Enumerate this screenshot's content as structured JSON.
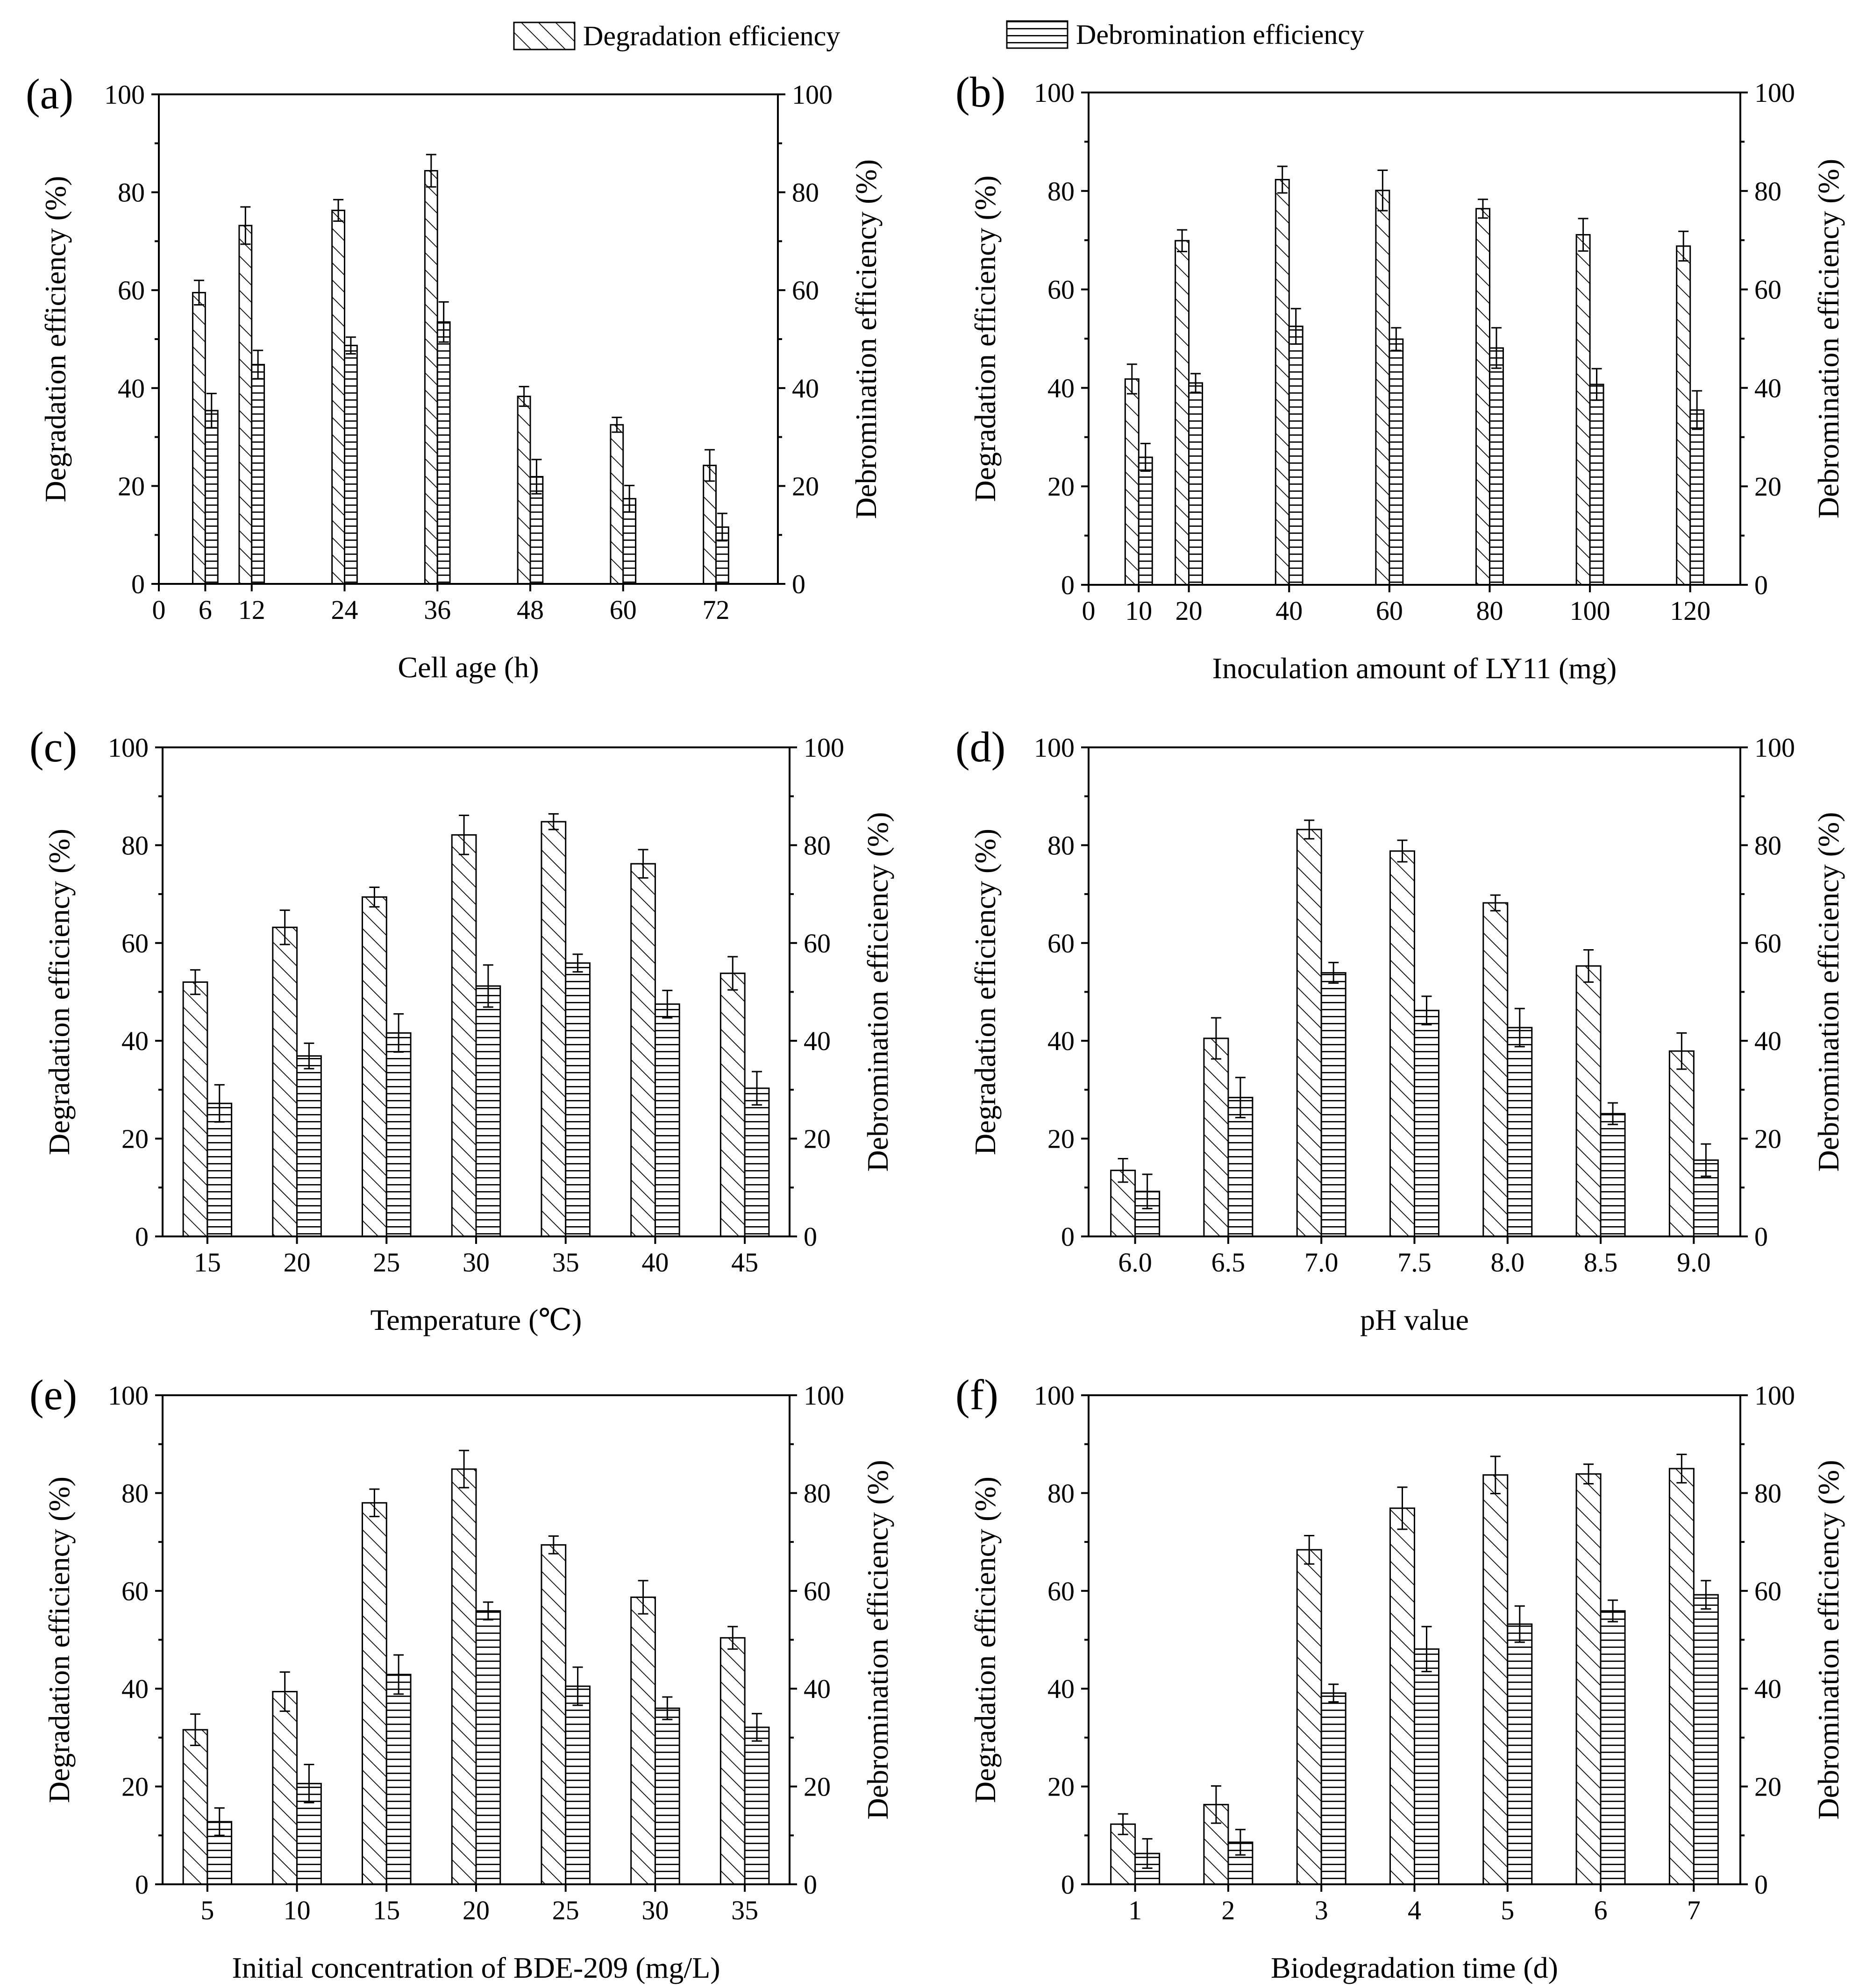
{
  "legend": {
    "degradation_label": "Degradation efficiency",
    "debromination_label": "Debromination efficiency"
  },
  "colors": {
    "bar_fill": "#ffffff",
    "stroke": "#000000"
  },
  "chart_data": [
    {
      "type": "bar",
      "panel_label": "(a)",
      "xlabel": "Cell age (h)",
      "ylabel_left": "Degradation efficiency (%)",
      "ylabel_right": "Debromination efficiency (%)",
      "ylim": [
        0,
        100
      ],
      "yticks": [
        0,
        20,
        40,
        60,
        80,
        100
      ],
      "x_axis_kind": "numeric",
      "xlim": [
        0,
        80
      ],
      "xticks": [
        0,
        6,
        12,
        24,
        36,
        48,
        60,
        72
      ],
      "x": [
        6,
        12,
        24,
        36,
        48,
        60,
        72
      ],
      "series": [
        {
          "name": "Degradation efficiency",
          "values": [
            59.5,
            73.2,
            76.3,
            84.4,
            38.3,
            32.5,
            24.2
          ],
          "errors": [
            2.5,
            3.8,
            2.2,
            3.3,
            2.0,
            1.5,
            3.2
          ]
        },
        {
          "name": "Debromination efficiency",
          "values": [
            35.4,
            44.8,
            48.7,
            53.5,
            21.9,
            17.4,
            11.6
          ],
          "errors": [
            3.5,
            2.9,
            1.7,
            4.1,
            3.5,
            2.7,
            2.8
          ]
        }
      ]
    },
    {
      "type": "bar",
      "panel_label": "(b)",
      "xlabel": "Inoculation amount of LY11 (mg)",
      "ylabel_left": "Degradation efficiency (%)",
      "ylabel_right": "Debromination efficiency (%)",
      "ylim": [
        0,
        100
      ],
      "yticks": [
        0,
        20,
        40,
        60,
        80,
        100
      ],
      "x_axis_kind": "numeric",
      "xlim": [
        0,
        130
      ],
      "xticks": [
        0,
        10,
        20,
        40,
        60,
        80,
        100,
        120
      ],
      "x": [
        10,
        20,
        40,
        60,
        80,
        100,
        120
      ],
      "series": [
        {
          "name": "Degradation efficiency",
          "values": [
            41.8,
            69.9,
            82.3,
            80.1,
            76.4,
            71.1,
            68.8
          ],
          "errors": [
            3.0,
            2.2,
            2.7,
            4.1,
            1.9,
            3.3,
            3.0
          ]
        },
        {
          "name": "Debromination efficiency",
          "values": [
            25.9,
            41.0,
            52.5,
            49.9,
            48.1,
            40.7,
            35.5
          ],
          "errors": [
            2.8,
            1.9,
            3.6,
            2.3,
            4.1,
            3.2,
            3.9
          ]
        }
      ]
    },
    {
      "type": "bar",
      "panel_label": "(c)",
      "xlabel": "Temperature (℃)",
      "ylabel_left": "Degradation efficiency (%)",
      "ylabel_right": "Debromination efficiency (%)",
      "ylim": [
        0,
        100
      ],
      "yticks": [
        0,
        20,
        40,
        60,
        80,
        100
      ],
      "x_axis_kind": "category",
      "categories": [
        "15",
        "20",
        "25",
        "30",
        "35",
        "40",
        "45"
      ],
      "series": [
        {
          "name": "Degradation efficiency",
          "values": [
            52.0,
            63.2,
            69.4,
            82.1,
            84.8,
            76.2,
            53.8
          ],
          "errors": [
            2.5,
            3.5,
            2.0,
            4.0,
            1.6,
            2.9,
            3.4
          ]
        },
        {
          "name": "Debromination efficiency",
          "values": [
            27.2,
            36.9,
            41.6,
            51.2,
            55.9,
            47.5,
            30.3
          ],
          "errors": [
            3.8,
            2.6,
            3.9,
            4.3,
            1.8,
            2.8,
            3.4
          ]
        }
      ]
    },
    {
      "type": "bar",
      "panel_label": "(d)",
      "xlabel": "pH value",
      "ylabel_left": "Degradation efficiency (%)",
      "ylabel_right": "Debromination efficiency (%)",
      "ylim": [
        0,
        100
      ],
      "yticks": [
        0,
        20,
        40,
        60,
        80,
        100
      ],
      "x_axis_kind": "category",
      "categories": [
        "6.0",
        "6.5",
        "7.0",
        "7.5",
        "8.0",
        "8.5",
        "9.0"
      ],
      "series": [
        {
          "name": "Degradation efficiency",
          "values": [
            13.5,
            40.5,
            83.2,
            78.8,
            68.2,
            55.3,
            37.9
          ],
          "errors": [
            2.4,
            4.2,
            1.9,
            2.2,
            1.6,
            3.3,
            3.7
          ]
        },
        {
          "name": "Debromination efficiency",
          "values": [
            9.2,
            28.4,
            53.9,
            46.2,
            42.7,
            25.1,
            15.6
          ],
          "errors": [
            3.5,
            4.1,
            2.1,
            2.9,
            3.9,
            2.2,
            3.3
          ]
        }
      ]
    },
    {
      "type": "bar",
      "panel_label": "(e)",
      "xlabel": "Initial concentration of BDE-209 (mg/L)",
      "ylabel_left": "Degradation efficiency (%)",
      "ylabel_right": "Debromination efficiency (%)",
      "ylim": [
        0,
        100
      ],
      "yticks": [
        0,
        20,
        40,
        60,
        80,
        100
      ],
      "x_axis_kind": "category",
      "categories": [
        "5",
        "10",
        "15",
        "20",
        "25",
        "30",
        "35"
      ],
      "series": [
        {
          "name": "Degradation efficiency",
          "values": [
            31.6,
            39.4,
            78.0,
            84.9,
            69.4,
            58.7,
            50.4
          ],
          "errors": [
            3.2,
            4.0,
            2.8,
            3.8,
            1.8,
            3.4,
            2.3
          ]
        },
        {
          "name": "Debromination efficiency",
          "values": [
            12.8,
            20.6,
            42.9,
            55.9,
            40.5,
            36.0,
            32.1
          ],
          "errors": [
            2.8,
            3.9,
            4.0,
            1.8,
            3.9,
            2.3,
            2.8
          ]
        }
      ]
    },
    {
      "type": "bar",
      "panel_label": "(f)",
      "xlabel": "Biodegradation time (d)",
      "ylabel_left": "Degradation efficiency (%)",
      "ylabel_right": "Debromination efficiency (%)",
      "ylim": [
        0,
        100
      ],
      "yticks": [
        0,
        20,
        40,
        60,
        80,
        100
      ],
      "x_axis_kind": "category",
      "categories": [
        "1",
        "2",
        "3",
        "4",
        "5",
        "6",
        "7"
      ],
      "series": [
        {
          "name": "Degradation efficiency",
          "values": [
            12.3,
            16.3,
            68.4,
            76.9,
            83.7,
            83.9,
            85.0
          ],
          "errors": [
            2.1,
            3.8,
            2.9,
            4.3,
            3.8,
            2.0,
            2.9
          ]
        },
        {
          "name": "Debromination efficiency",
          "values": [
            6.3,
            8.6,
            39.1,
            48.1,
            53.2,
            55.9,
            59.2
          ],
          "errors": [
            3.0,
            2.6,
            1.8,
            4.6,
            3.7,
            2.2,
            2.9
          ]
        }
      ]
    }
  ]
}
